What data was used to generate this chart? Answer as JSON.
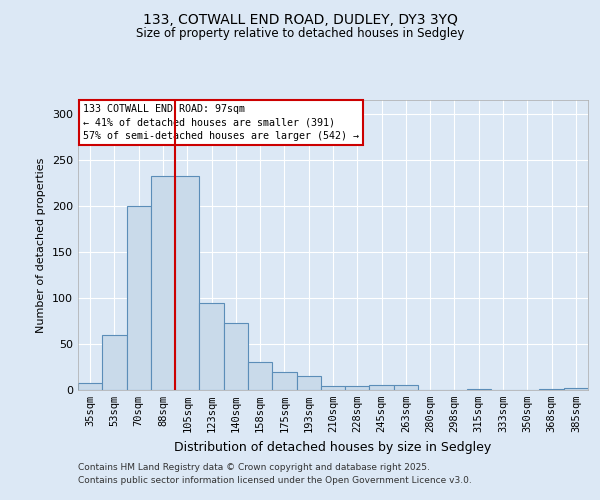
{
  "title1": "133, COTWALL END ROAD, DUDLEY, DY3 3YQ",
  "title2": "Size of property relative to detached houses in Sedgley",
  "xlabel": "Distribution of detached houses by size in Sedgley",
  "ylabel": "Number of detached properties",
  "categories": [
    "35sqm",
    "53sqm",
    "70sqm",
    "88sqm",
    "105sqm",
    "123sqm",
    "140sqm",
    "158sqm",
    "175sqm",
    "193sqm",
    "210sqm",
    "228sqm",
    "245sqm",
    "263sqm",
    "280sqm",
    "298sqm",
    "315sqm",
    "333sqm",
    "350sqm",
    "368sqm",
    "385sqm"
  ],
  "values": [
    8,
    60,
    200,
    232,
    232,
    95,
    73,
    30,
    20,
    15,
    4,
    4,
    5,
    5,
    0,
    0,
    1,
    0,
    0,
    1,
    2
  ],
  "bar_color": "#c9daea",
  "bar_edge_color": "#5b8db8",
  "bar_edge_width": 0.8,
  "red_line_x": 3.5,
  "red_line_color": "#cc0000",
  "annotation_text": "133 COTWALL END ROAD: 97sqm\n← 41% of detached houses are smaller (391)\n57% of semi-detached houses are larger (542) →",
  "annotation_box_color": "#ffffff",
  "annotation_edge_color": "#cc0000",
  "ylim": [
    0,
    315
  ],
  "yticks": [
    0,
    50,
    100,
    150,
    200,
    250,
    300
  ],
  "footer1": "Contains HM Land Registry data © Crown copyright and database right 2025.",
  "footer2": "Contains public sector information licensed under the Open Government Licence v3.0.",
  "bg_color": "#dce8f5",
  "plot_bg_color": "#dce8f5"
}
